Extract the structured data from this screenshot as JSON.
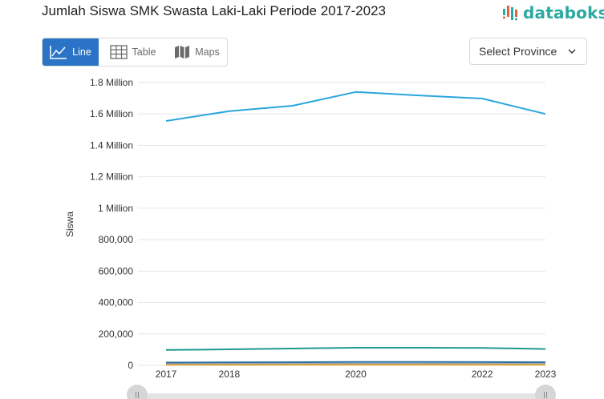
{
  "header": {
    "title": "Jumlah Siswa SMK Swasta Laki-Laki Periode 2017-2023",
    "logo_text": "databoks"
  },
  "tabs": [
    {
      "label": "Line",
      "icon": "line-chart-icon",
      "active": true
    },
    {
      "label": "Table",
      "icon": "table-icon",
      "active": false
    },
    {
      "label": "Maps",
      "icon": "map-icon",
      "active": false
    }
  ],
  "province_select": {
    "label": "Select Province",
    "icon": "chevron-down-icon"
  },
  "colors": {
    "accent": "#2a73c6",
    "brand": "#2aa9a1",
    "series_main": "#2aa6dd",
    "series_teal": "#1f9a8e",
    "series_blue": "#2f6fa8",
    "series_orange": "#e0a23a",
    "series_gray": "#8fa0a8"
  },
  "chart_data": {
    "type": "line",
    "title": "Jumlah Siswa SMK Swasta Laki-Laki Periode 2017-2023",
    "xlabel": "",
    "ylabel": "Siswa",
    "x": [
      2017,
      2018,
      2019,
      2020,
      2021,
      2022,
      2023
    ],
    "xlim": [
      2017,
      2023
    ],
    "x_ticks": [
      "2017",
      "2018",
      "2020",
      "2022",
      "2023"
    ],
    "ylim": [
      0,
      1800000
    ],
    "y_ticks": [
      "0",
      "200,000",
      "400,000",
      "600,000",
      "800,000",
      "1 Million",
      "1.2 Million",
      "1.4 Million",
      "1.6 Million",
      "1.8 Million"
    ],
    "grid": true,
    "series": [
      {
        "values": [
          1555000,
          1618000,
          1652000,
          1740000,
          1718000,
          1698000,
          1600000
        ],
        "color": "#2aa6dd"
      },
      {
        "values": [
          98000,
          102000,
          107000,
          112000,
          112000,
          111000,
          104000
        ],
        "color": "#1f9a8e"
      },
      {
        "values": [
          18000,
          19000,
          20000,
          22000,
          22000,
          21000,
          20000
        ],
        "color": "#2f6fa8"
      },
      {
        "values": [
          8000,
          8500,
          9000,
          10000,
          10000,
          9500,
          9000
        ],
        "color": "#8fa0a8"
      },
      {
        "values": [
          3000,
          3200,
          3400,
          3800,
          3800,
          3600,
          3400
        ],
        "color": "#e0a23a"
      }
    ]
  }
}
